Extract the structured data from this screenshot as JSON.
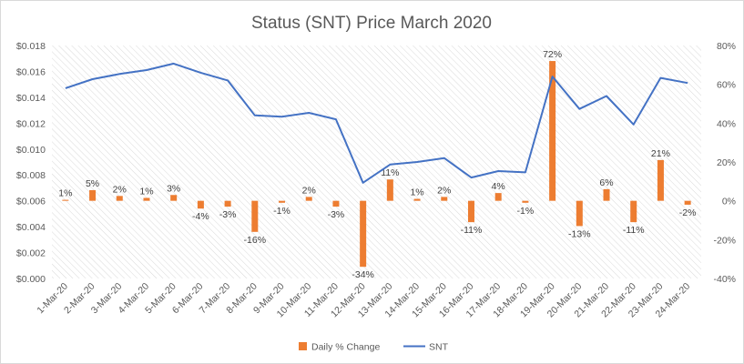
{
  "chart_data": {
    "type": "bar",
    "title": "Status (SNT) Price March 2020",
    "categories": [
      "1-Mar-20",
      "2-Mar-20",
      "3-Mar-20",
      "4-Mar-20",
      "5-Mar-20",
      "6-Mar-20",
      "7-Mar-20",
      "8-Mar-20",
      "9-Mar-20",
      "10-Mar-20",
      "11-Mar-20",
      "12-Mar-20",
      "13-Mar-20",
      "14-Mar-20",
      "15-Mar-20",
      "16-Mar-20",
      "17-Mar-20",
      "18-Mar-20",
      "19-Mar-20",
      "20-Mar-20",
      "21-Mar-20",
      "22-Mar-20",
      "23-Mar-20",
      "24-Mar-20"
    ],
    "left_axis": {
      "ylim": [
        0,
        0.018
      ],
      "ticks": [
        "$0.000",
        "$0.002",
        "$0.004",
        "$0.006",
        "$0.008",
        "$0.010",
        "$0.012",
        "$0.014",
        "$0.016",
        "$0.018"
      ]
    },
    "right_axis": {
      "ylim": [
        -40,
        80
      ],
      "ticks": [
        "-40%",
        "-20%",
        "0%",
        "20%",
        "40%",
        "60%",
        "80%"
      ]
    },
    "series": [
      {
        "name": "Daily % Change",
        "type": "bar",
        "axis": "right",
        "color": "#ED7D31",
        "values": [
          0.5,
          5.5,
          2.5,
          1.5,
          3,
          -4,
          -3,
          -16,
          -1,
          2,
          -3,
          -34,
          11,
          1,
          2,
          -11,
          4,
          -1,
          72,
          -13,
          6,
          -11,
          21,
          -2
        ],
        "labels": [
          "1%",
          "5%",
          "2%",
          "1%",
          "3%",
          "-4%",
          "-3%",
          "-16%",
          "-1%",
          "2%",
          "-3%",
          "-34%",
          "11%",
          "1%",
          "2%",
          "-11%",
          "4%",
          "-1%",
          "72%",
          "-13%",
          "6%",
          "-11%",
          "21%",
          "-2%"
        ]
      },
      {
        "name": "SNT",
        "type": "line",
        "axis": "left",
        "color": "#4472C4",
        "values": [
          0.0147,
          0.0154,
          0.0158,
          0.0161,
          0.0166,
          0.0159,
          0.0153,
          0.0126,
          0.0125,
          0.0128,
          0.0123,
          0.0074,
          0.0088,
          0.009,
          0.0093,
          0.0078,
          0.0083,
          0.0082,
          0.0156,
          0.0131,
          0.0141,
          0.0119,
          0.0155,
          0.0151
        ]
      }
    ],
    "legend": "bottom",
    "grid": false
  }
}
